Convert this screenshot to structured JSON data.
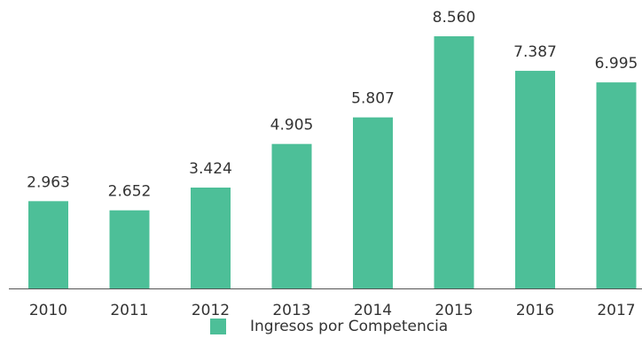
{
  "chart_data": {
    "type": "bar",
    "categories": [
      "2010",
      "2011",
      "2012",
      "2013",
      "2014",
      "2015",
      "2016",
      "2017"
    ],
    "series": [
      {
        "name": "Ingresos por Competencia",
        "color": "#4dbf98",
        "values": [
          2963,
          2652,
          3424,
          4905,
          5807,
          8560,
          7387,
          6995
        ],
        "value_labels": [
          "2.963",
          "2.652",
          "3.424",
          "4.905",
          "5.807",
          "8.560",
          "7.387",
          "6.995"
        ]
      }
    ]
  }
}
